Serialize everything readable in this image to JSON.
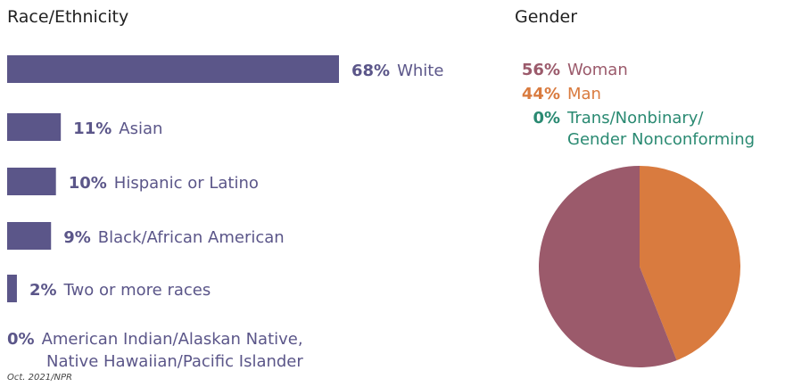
{
  "source_note": "Oct. 2021/NPR",
  "chart_data": [
    {
      "type": "bar",
      "orientation": "horizontal",
      "title": "Race/Ethnicity",
      "categories": [
        "White",
        "Asian",
        "Hispanic or Latino",
        "Black/African American",
        "Two or more races",
        "American Indian/Alaskan Native, Native Hawaiian/Pacific Islander"
      ],
      "category_lines": [
        [
          "White"
        ],
        [
          "Asian"
        ],
        [
          "Hispanic or Latino"
        ],
        [
          "Black/African American"
        ],
        [
          "Two or more races"
        ],
        [
          "American Indian/Alaskan Native,",
          "Native Hawaiian/Pacific Islander"
        ]
      ],
      "values": [
        68,
        11,
        10,
        9,
        2,
        0
      ],
      "value_labels": [
        "68%",
        "11%",
        "10%",
        "9%",
        "2%",
        "0%"
      ],
      "unit": "%",
      "color": "#5b5689",
      "grid": false
    },
    {
      "type": "pie",
      "title": "Gender",
      "categories": [
        "Woman",
        "Man",
        "Trans/Nonbinary/ Gender Nonconforming"
      ],
      "category_lines": [
        [
          "Woman"
        ],
        [
          "Man"
        ],
        [
          "Trans/Nonbinary/",
          "Gender Nonconforming"
        ]
      ],
      "values": [
        56,
        44,
        0
      ],
      "value_labels": [
        "56%",
        "44%",
        "0%"
      ],
      "colors": [
        "#9b5a6b",
        "#d97b3f",
        "#2a8a72"
      ],
      "legend": "top"
    }
  ]
}
